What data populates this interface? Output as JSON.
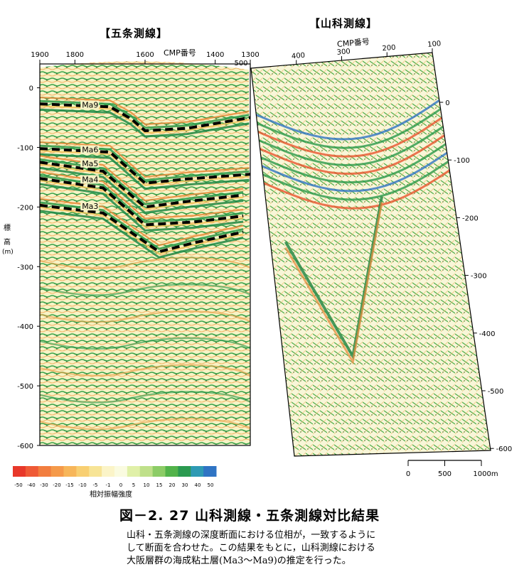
{
  "figure": {
    "title": "図－2. 27  山科測線・五条測線対比結果",
    "caption": [
      "山科・五条測線の深度断面における位相が，一致するように",
      "して断面を合わせた。この結果をもとに，山科測線における",
      "大阪層群の海成粘土層(Ma3～Ma9)の推定を行った。"
    ]
  },
  "chart_data": [
    {
      "type": "heatmap",
      "title": "【五条測線】",
      "xlabel": "CMP番号",
      "ylabel": "標高 (m)",
      "ylabel_chars": [
        "標",
        "高",
        "(m)"
      ],
      "x_ticks": [
        "1900",
        "1800",
        "1600",
        "1400",
        "1300"
      ],
      "x_tick_values": [
        1900,
        1800,
        1600,
        1400,
        1300
      ],
      "xlim": [
        1900,
        1300
      ],
      "y_ticks": [
        "0",
        "-100",
        "-200",
        "-300",
        "-400",
        "-500",
        "-600"
      ],
      "y_tick_values": [
        0,
        -100,
        -200,
        -300,
        -400,
        -500,
        -600
      ],
      "ylim": [
        40,
        -600
      ],
      "horizons": [
        {
          "name": "Ma9",
          "points": [
            [
              1900,
              -27
            ],
            [
              1700,
              -32
            ],
            [
              1640,
              -52
            ],
            [
              1600,
              -72
            ],
            [
              1480,
              -68
            ],
            [
              1300,
              -50
            ]
          ]
        },
        {
          "name": "Ma6",
          "points": [
            [
              1900,
              -102
            ],
            [
              1700,
              -108
            ],
            [
              1600,
              -160
            ],
            [
              1480,
              -153
            ],
            [
              1300,
              -145
            ]
          ]
        },
        {
          "name": "Ma5",
          "points": [
            [
              1900,
              -125
            ],
            [
              1720,
              -140
            ],
            [
              1600,
              -200
            ],
            [
              1470,
              -190
            ],
            [
              1320,
              -180
            ]
          ]
        },
        {
          "name": "Ma4",
          "points": [
            [
              1900,
              -152
            ],
            [
              1720,
              -168
            ],
            [
              1600,
              -230
            ],
            [
              1460,
              -225
            ],
            [
              1320,
              -215
            ]
          ]
        },
        {
          "name": "Ma3",
          "points": [
            [
              1900,
              -197
            ],
            [
              1720,
              -210
            ],
            [
              1560,
              -275
            ],
            [
              1460,
              -260
            ],
            [
              1320,
              -242
            ]
          ]
        }
      ]
    },
    {
      "type": "heatmap",
      "title": "【山科測線】",
      "xlabel": "CMP番号",
      "x_ticks": [
        "400",
        "300",
        "200",
        "100"
      ],
      "x_tick_values": [
        400,
        300,
        200,
        100
      ],
      "xlim": [
        500,
        100
      ],
      "extra_labels": [
        "500"
      ],
      "y_ticks": [
        "0",
        "-100",
        "-200",
        "-300",
        "-400",
        "-500",
        "-600"
      ],
      "y_tick_values": [
        0,
        -100,
        -200,
        -300,
        -400,
        -500,
        -600
      ],
      "ylim": [
        -600,
        0
      ],
      "scale_bar": {
        "ticks": [
          "0",
          "500",
          "1000m"
        ],
        "values": [
          0,
          500,
          1000
        ]
      }
    }
  ],
  "colorbar": {
    "label": "相対振幅強度",
    "ticks": [
      "-50",
      "-40",
      "-30",
      "-20",
      "-15",
      "-10",
      "-5",
      "-1",
      "0",
      "5",
      "10",
      "15",
      "20",
      "30",
      "40",
      "50"
    ],
    "colors": [
      "#e8382a",
      "#ef5a36",
      "#f27e3f",
      "#f59a4a",
      "#f7b65a",
      "#f8cf72",
      "#f7e496",
      "#fbf4c8",
      "#fafbe0",
      "#e0f0a8",
      "#bfe08a",
      "#8ccc66",
      "#52b34a",
      "#2b9a50",
      "#2e9ab4",
      "#2f74c4"
    ]
  },
  "colors": {
    "positive": "#2aa34a",
    "negative": "#f08a3a",
    "background": "#fafad2",
    "horizon": "#000000"
  }
}
